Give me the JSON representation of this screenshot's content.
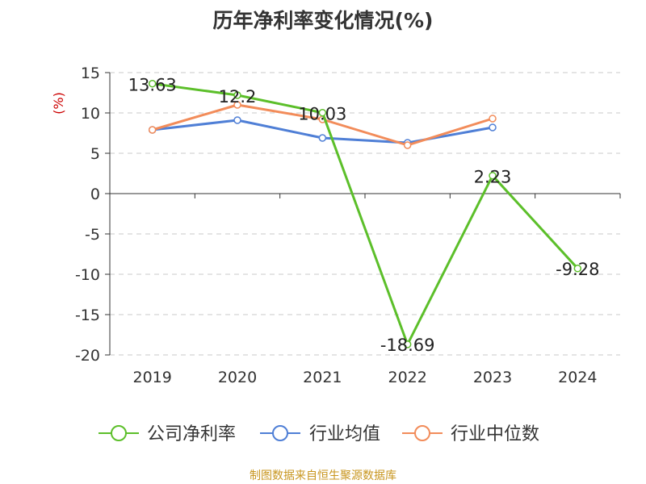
{
  "chart_data": {
    "type": "line",
    "title": "历年净利率变化情况(%)",
    "ylabel": "(%)",
    "categories": [
      "2019",
      "2020",
      "2021",
      "2022",
      "2023",
      "2024"
    ],
    "ylim": [
      -20,
      15
    ],
    "yticks": [
      15,
      10,
      5,
      0,
      -5,
      -10,
      -15,
      -20
    ],
    "ytick_labels": [
      "15",
      "10",
      "5",
      "0",
      "-5",
      "-10",
      "-15",
      "-20"
    ],
    "grid": true,
    "legend_position": "bottom",
    "series": [
      {
        "name": "公司净利率",
        "color": "#5cbf2a",
        "values": [
          13.63,
          12.2,
          10.03,
          -18.69,
          2.23,
          -9.28
        ],
        "labels": [
          "13.63",
          "12.2",
          "10.03",
          "-18.69",
          "2.23",
          "-9.28"
        ]
      },
      {
        "name": "行业均值",
        "color": "#4f7fd6",
        "values": [
          7.9,
          9.1,
          6.9,
          6.3,
          8.2,
          null
        ]
      },
      {
        "name": "行业中位数",
        "color": "#f28c5a",
        "values": [
          7.9,
          11.0,
          9.2,
          6.0,
          9.3,
          null
        ]
      }
    ]
  },
  "source": "制图数据来自恒生聚源数据库"
}
